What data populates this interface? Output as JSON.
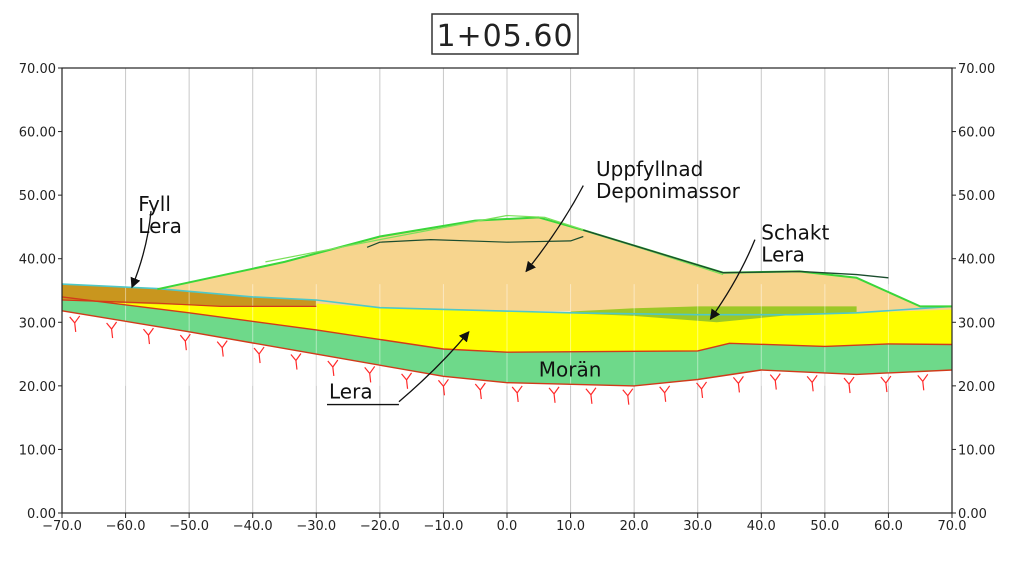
{
  "title": "1+05.60",
  "x_axis": {
    "min": -70,
    "max": 70,
    "step": 10,
    "tick_labels": [
      "−70.0",
      "−60.0",
      "−50.0",
      "−40.0",
      "−30.0",
      "−20.0",
      "−10.0",
      "0.0",
      "10.0",
      "20.0",
      "30.0",
      "40.0",
      "50.0",
      "60.0",
      "70.0"
    ]
  },
  "y_axis": {
    "min": 0,
    "max": 70,
    "step": 10,
    "tick_labels": [
      "0.00",
      "10.00",
      "20.00",
      "30.00",
      "40.00",
      "50.00",
      "60.00",
      "70.00"
    ]
  },
  "layers": {
    "fill_mound": {
      "color": "#f7d58e",
      "points": [
        [
          -55,
          35.2
        ],
        [
          -35,
          39.5
        ],
        [
          -20,
          43.5
        ],
        [
          -5,
          46
        ],
        [
          5,
          46.5
        ],
        [
          12,
          44.5
        ],
        [
          34,
          37.8
        ],
        [
          46,
          38
        ],
        [
          55,
          37
        ],
        [
          65,
          32.5
        ],
        [
          70,
          32.5
        ],
        [
          70,
          31.5
        ],
        [
          55,
          31.5
        ],
        [
          45,
          31.2
        ],
        [
          30,
          31.4
        ],
        [
          10,
          31.7
        ],
        [
          -20,
          32
        ],
        [
          -40,
          33.5
        ],
        [
          -55,
          34.5
        ]
      ]
    },
    "schakt_lera": {
      "color": "#9cc826",
      "points": [
        [
          10,
          31.7
        ],
        [
          20,
          32.2
        ],
        [
          30,
          32.5
        ],
        [
          55,
          32.5
        ],
        [
          55,
          31.6
        ],
        [
          45,
          31.2
        ],
        [
          33,
          30
        ],
        [
          20,
          31
        ],
        [
          10,
          31.4
        ]
      ]
    },
    "fyll_lera": {
      "color": "#c9961e",
      "points": [
        [
          -70,
          36
        ],
        [
          -55,
          35.3
        ],
        [
          -40,
          34
        ],
        [
          -30,
          33.5
        ],
        [
          -30,
          32.5
        ],
        [
          -45,
          32.5
        ],
        [
          -60,
          33
        ],
        [
          -70,
          33.5
        ]
      ]
    },
    "lera": {
      "color": "#ffff00",
      "points": [
        [
          -70,
          33.5
        ],
        [
          -55,
          33
        ],
        [
          -40,
          33.6
        ],
        [
          -20,
          32.3
        ],
        [
          10,
          31.5
        ],
        [
          30,
          31.5
        ],
        [
          45,
          31.2
        ],
        [
          55,
          31.5
        ],
        [
          70,
          32
        ],
        [
          70,
          26.5
        ],
        [
          60,
          26.6
        ],
        [
          50,
          26.2
        ],
        [
          35,
          26.7
        ],
        [
          30,
          25.5
        ],
        [
          0,
          25.3
        ],
        [
          -10,
          25.8
        ],
        [
          -30,
          28.8
        ],
        [
          -50,
          31.5
        ],
        [
          -70,
          34
        ]
      ]
    },
    "moran": {
      "color": "#6ed98a",
      "points": [
        [
          -70,
          34
        ],
        [
          -50,
          31.5
        ],
        [
          -30,
          28.8
        ],
        [
          -10,
          25.8
        ],
        [
          0,
          25.3
        ],
        [
          30,
          25.5
        ],
        [
          35,
          26.7
        ],
        [
          50,
          26.2
        ],
        [
          60,
          26.6
        ],
        [
          70,
          26.5
        ],
        [
          70,
          22.5
        ],
        [
          55,
          21.8
        ],
        [
          40,
          22.5
        ],
        [
          30,
          21
        ],
        [
          20,
          20
        ],
        [
          0,
          20.5
        ],
        [
          -10,
          21.5
        ],
        [
          -30,
          25
        ],
        [
          -50,
          28.5
        ],
        [
          -70,
          31.8
        ]
      ]
    }
  },
  "annotations": [
    {
      "lines": [
        "Fyll",
        "Lera"
      ],
      "text_x": -58,
      "text_y": 47.5,
      "arrow_from": [
        -56,
        47.5
      ],
      "arrow_to": [
        -59,
        35.5
      ]
    },
    {
      "lines": [
        "Uppfyllnad",
        "Deponimassor"
      ],
      "text_x": 14,
      "text_y": 53,
      "arrow_from": [
        12,
        51.5
      ],
      "arrow_to": [
        3,
        38
      ]
    },
    {
      "lines": [
        "Schakt",
        "Lera"
      ],
      "text_x": 40,
      "text_y": 43,
      "arrow_from": [
        39,
        43
      ],
      "arrow_to": [
        32,
        30.5
      ]
    },
    {
      "lines": [
        "Lera"
      ],
      "text_x": -28,
      "text_y": 18,
      "arrow_from": [
        -17,
        17.5
      ],
      "arrow_to": [
        -6,
        28.5
      ]
    },
    {
      "lines": [
        "Morän"
      ],
      "text_x": 5,
      "text_y": 21.5
    }
  ],
  "colors": {
    "top_surface_green": "#3ad63a",
    "terrain_line_dark": "#1b4d2e",
    "outline_red": "#d23a1a",
    "rock_symbol": "#ff2a2a",
    "grid": "#c8c8c8"
  }
}
